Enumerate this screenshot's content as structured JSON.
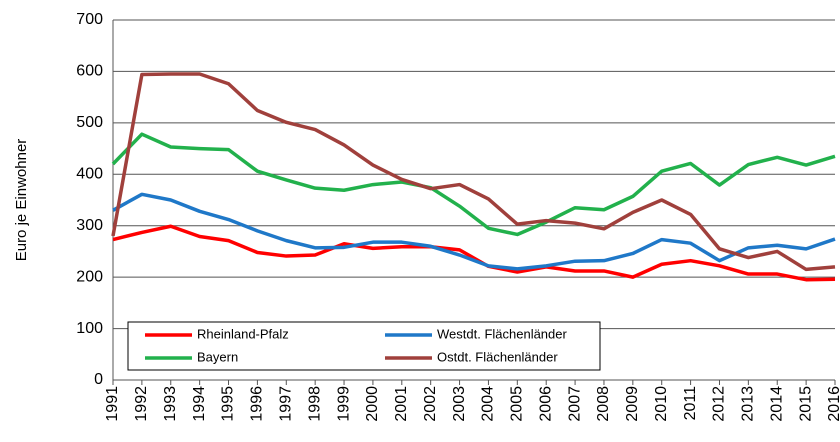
{
  "chart_data": {
    "type": "line",
    "y_label": "Euro je Einwohner",
    "categories": [
      "1991",
      "1992",
      "1993",
      "1994",
      "1995",
      "1996",
      "1997",
      "1998",
      "1999",
      "2000",
      "2001",
      "2002",
      "2003",
      "2004",
      "2005",
      "2006",
      "2007",
      "2008",
      "2009",
      "2010",
      "2011",
      "2012",
      "2013",
      "2014",
      "2015",
      "2016"
    ],
    "series": [
      {
        "name": "Rheinland-Pfalz",
        "color": "#ff0000",
        "values": [
          273,
          287,
          299,
          279,
          271,
          248,
          241,
          243,
          265,
          256,
          259,
          259,
          253,
          221,
          210,
          220,
          212,
          212,
          200,
          225,
          232,
          222,
          206,
          206,
          195,
          196
        ]
      },
      {
        "name": "Westdt. Flächenländer",
        "color": "#1f78c8",
        "values": [
          330,
          361,
          350,
          328,
          312,
          290,
          271,
          257,
          258,
          268,
          268,
          260,
          243,
          222,
          216,
          222,
          231,
          232,
          246,
          273,
          266,
          232,
          257,
          262,
          255,
          274
        ]
      },
      {
        "name": "Bayern",
        "color": "#22b14c",
        "values": [
          420,
          478,
          453,
          450,
          448,
          406,
          389,
          373,
          369,
          380,
          385,
          374,
          338,
          295,
          283,
          307,
          335,
          331,
          357,
          406,
          421,
          379,
          419,
          433,
          418,
          435
        ]
      },
      {
        "name": "Ostdt. Flächenländer",
        "color": "#a0403c",
        "values": [
          280,
          594,
          595,
          595,
          576,
          524,
          501,
          487,
          457,
          418,
          390,
          372,
          380,
          352,
          303,
          310,
          305,
          294,
          326,
          350,
          322,
          255,
          238,
          250,
          215,
          220
        ]
      }
    ],
    "ylim": [
      0,
      700
    ],
    "yticks": [
      0,
      100,
      200,
      300,
      400,
      500,
      600,
      700
    ],
    "grid": true
  }
}
